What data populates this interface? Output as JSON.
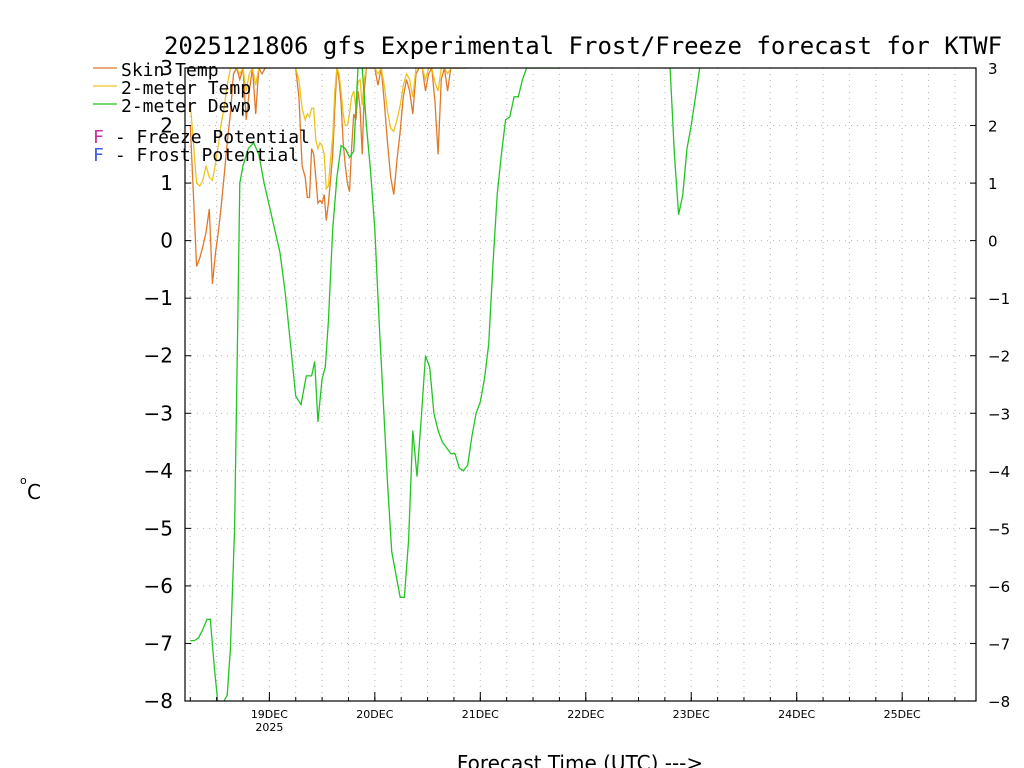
{
  "chart_data": {
    "type": "line",
    "title": "2025121806 gfs Experimental Frost/Freeze forecast for KTWF",
    "xlabel": "Forecast Time (UTC) --->",
    "ylabel_unit": "o",
    "ylabel_letter": "C",
    "ylim": [
      -8,
      3
    ],
    "xlim": [
      -0.8,
      6.7
    ],
    "y_ticks": [
      -8,
      -7,
      -6,
      -5,
      -4,
      -3,
      -2,
      -1,
      0,
      1,
      2,
      3
    ],
    "y_tick_labels": [
      "−8",
      "−7",
      "−6",
      "−5",
      "−4",
      "−3",
      "−2",
      "−1",
      "0",
      "1",
      "2",
      "3"
    ],
    "x_ticks": [
      {
        "day": 0,
        "label": "19DEC",
        "sublabel": "2025"
      },
      {
        "day": 1,
        "label": "20DEC",
        "sublabel": ""
      },
      {
        "day": 2,
        "label": "21DEC",
        "sublabel": ""
      },
      {
        "day": 3,
        "label": "22DEC",
        "sublabel": ""
      },
      {
        "day": 4,
        "label": "23DEC",
        "sublabel": ""
      },
      {
        "day": 5,
        "label": "24DEC",
        "sublabel": ""
      },
      {
        "day": 6,
        "label": "25DEC",
        "sublabel": ""
      }
    ],
    "grid": true,
    "legend": [
      {
        "symbol": "line",
        "color": "#e0782a",
        "text": "Skin Temp"
      },
      {
        "symbol": "line",
        "color": "#ecc420",
        "text": "2-meter Temp"
      },
      {
        "symbol": "line",
        "color": "#23c423",
        "text": "2-meter Dewp"
      },
      {
        "symbol": "F",
        "color": "#c8329a",
        "text": " - Freeze Potential"
      },
      {
        "symbol": "F",
        "color": "#3c5ae6",
        "text": " - Frost Potential"
      }
    ],
    "series": [
      {
        "name": "Skin Temp",
        "color": "#e0782a",
        "x": [
          -0.75,
          -0.72,
          -0.69,
          -0.66,
          -0.63,
          -0.6,
          -0.57,
          -0.54,
          -0.51,
          -0.48,
          -0.46,
          -0.43,
          -0.4,
          -0.37,
          -0.34,
          -0.31,
          -0.28,
          -0.25,
          -0.22,
          -0.19,
          -0.16,
          -0.13,
          -0.1,
          -0.07,
          -0.04,
          0.25,
          0.28,
          0.31,
          0.34,
          0.36,
          0.38,
          0.4,
          0.42,
          0.44,
          0.46,
          0.48,
          0.5,
          0.52,
          0.54,
          0.56,
          0.58,
          0.6,
          0.62,
          0.64,
          0.66,
          0.68,
          0.7,
          0.72,
          0.74,
          0.76,
          0.78,
          0.8,
          0.82,
          0.84,
          0.86,
          0.88,
          0.9,
          0.92,
          1.0,
          1.03,
          1.06,
          1.09,
          1.12,
          1.15,
          1.18,
          1.21,
          1.24,
          1.27,
          1.3,
          1.33,
          1.36,
          1.39,
          1.42,
          1.45,
          1.48,
          1.51,
          1.54,
          1.57,
          1.6,
          1.63,
          1.66,
          1.69,
          1.72,
          1.75,
          1.78,
          1.81,
          1.84,
          1.87
        ],
        "y": [
          2.0,
          0.8,
          -0.45,
          -0.3,
          -0.1,
          0.15,
          0.55,
          -0.75,
          -0.2,
          0.2,
          0.55,
          1.1,
          1.7,
          2.2,
          2.9,
          3.0,
          2.8,
          3.0,
          2.1,
          2.6,
          3.0,
          2.2,
          3.0,
          2.9,
          3.0,
          3.0,
          2.5,
          1.3,
          1.1,
          0.75,
          0.75,
          1.6,
          1.5,
          1.1,
          0.65,
          0.7,
          0.65,
          0.8,
          0.35,
          0.65,
          1.05,
          1.5,
          2.3,
          3.0,
          2.8,
          2.4,
          1.7,
          1.3,
          1.0,
          0.85,
          1.6,
          2.2,
          2.1,
          2.6,
          2.3,
          1.5,
          2.6,
          3.0,
          3.0,
          2.7,
          3.0,
          2.4,
          1.7,
          1.1,
          0.8,
          1.4,
          1.9,
          2.5,
          2.8,
          2.6,
          2.2,
          2.9,
          3.0,
          3.0,
          2.6,
          2.9,
          3.0,
          2.4,
          1.5,
          2.8,
          3.0,
          2.6,
          3.0,
          3.0,
          3.0,
          3.0,
          3.0,
          3.0
        ]
      },
      {
        "name": "2-meter Temp",
        "color": "#ecc420",
        "x": [
          -0.75,
          -0.72,
          -0.69,
          -0.66,
          -0.63,
          -0.6,
          -0.57,
          -0.54,
          -0.51,
          -0.48,
          -0.46,
          -0.43,
          -0.4,
          -0.37,
          -0.34,
          -0.31,
          -0.28,
          -0.25,
          -0.22,
          -0.19,
          -0.16,
          -0.13,
          -0.1,
          -0.07,
          -0.04,
          0.25,
          0.28,
          0.31,
          0.34,
          0.36,
          0.38,
          0.4,
          0.42,
          0.44,
          0.46,
          0.48,
          0.5,
          0.52,
          0.54,
          0.56,
          0.58,
          0.6,
          0.62,
          0.64,
          0.66,
          0.68,
          0.7,
          0.72,
          0.74,
          0.76,
          0.78,
          0.8,
          0.82,
          0.84,
          0.86,
          0.88,
          0.9,
          0.92,
          1.0,
          1.03,
          1.06,
          1.09,
          1.12,
          1.15,
          1.18,
          1.21,
          1.24,
          1.27,
          1.3,
          1.33,
          1.36,
          1.39,
          1.42,
          1.45,
          1.48,
          1.51,
          1.54,
          1.57,
          1.6,
          1.63,
          1.66,
          1.69,
          1.72,
          1.75,
          1.78,
          1.81,
          1.84,
          1.87
        ],
        "y": [
          2.4,
          1.7,
          1.0,
          0.95,
          1.05,
          1.3,
          1.1,
          1.05,
          1.35,
          1.7,
          2.0,
          2.3,
          2.7,
          3.0,
          3.0,
          3.0,
          2.9,
          3.0,
          2.6,
          2.9,
          3.0,
          2.7,
          3.0,
          3.0,
          3.0,
          3.0,
          2.8,
          2.3,
          2.1,
          2.2,
          2.15,
          2.3,
          2.3,
          1.75,
          1.6,
          1.7,
          1.65,
          1.5,
          0.9,
          0.95,
          1.4,
          1.8,
          2.6,
          3.0,
          2.9,
          2.6,
          2.2,
          2.0,
          2.0,
          2.2,
          2.5,
          2.6,
          2.3,
          2.75,
          2.8,
          2.35,
          2.8,
          3.0,
          3.0,
          2.9,
          3.0,
          2.7,
          2.25,
          1.95,
          1.9,
          2.1,
          2.35,
          2.7,
          2.9,
          2.8,
          2.5,
          3.0,
          3.0,
          3.0,
          2.8,
          3.0,
          3.0,
          2.75,
          2.6,
          3.0,
          3.0,
          2.9,
          3.0,
          3.0,
          3.0,
          3.0,
          3.0,
          3.0
        ]
      },
      {
        "name": "2-meter Dewp",
        "color": "#23c423",
        "x": [
          -0.75,
          -0.71,
          -0.67,
          -0.63,
          -0.59,
          -0.56,
          -0.52,
          -0.49,
          -0.46,
          -0.43,
          -0.4,
          -0.37,
          -0.33,
          -0.3,
          -0.28,
          -0.25,
          -0.2,
          -0.15,
          -0.1,
          -0.05,
          0.0,
          0.05,
          0.1,
          0.15,
          0.2,
          0.25,
          0.3,
          0.35,
          0.4,
          0.43,
          0.46,
          0.5,
          0.53,
          0.56,
          0.6,
          0.64,
          0.68,
          0.72,
          0.76,
          0.8,
          0.84,
          0.88,
          0.92,
          0.96,
          1.0,
          1.04,
          1.08,
          1.12,
          1.16,
          1.2,
          1.24,
          1.28,
          1.32,
          1.36,
          1.4,
          1.44,
          1.48,
          1.52,
          1.56,
          1.6,
          1.64,
          1.68,
          1.72,
          1.76,
          1.8,
          1.84,
          1.88,
          1.92,
          1.96,
          2.0,
          2.04,
          2.08,
          2.12,
          2.16,
          2.2,
          2.24,
          2.28,
          2.32,
          2.36,
          2.4,
          2.44,
          2.48,
          2.52,
          2.56,
          2.6,
          2.64,
          2.68,
          2.72,
          2.76,
          3.8,
          3.84,
          3.88,
          3.92,
          3.96,
          4.0,
          4.04,
          4.08
        ],
        "y": [
          -6.95,
          -6.95,
          -6.9,
          -6.75,
          -6.58,
          -6.58,
          -7.45,
          -8.0,
          -8.1,
          -8.0,
          -7.9,
          -7.1,
          -5.0,
          -1.5,
          1.0,
          1.3,
          1.6,
          1.7,
          1.5,
          1.0,
          0.6,
          0.2,
          -0.2,
          -0.9,
          -1.8,
          -2.7,
          -2.85,
          -2.35,
          -2.35,
          -2.1,
          -3.15,
          -2.4,
          -2.2,
          -1.4,
          0.2,
          1.1,
          1.65,
          1.6,
          1.45,
          1.55,
          3.0,
          3.0,
          2.0,
          1.2,
          0.2,
          -1.4,
          -2.8,
          -4.2,
          -5.4,
          -5.8,
          -6.2,
          -6.2,
          -5.2,
          -3.3,
          -4.1,
          -3.1,
          -2.0,
          -2.2,
          -3.0,
          -3.3,
          -3.5,
          -3.6,
          -3.7,
          -3.7,
          -3.95,
          -4.0,
          -3.9,
          -3.4,
          -3.0,
          -2.8,
          -2.4,
          -1.8,
          -0.4,
          0.8,
          1.5,
          2.1,
          2.15,
          2.5,
          2.5,
          2.8,
          3.0,
          3.0,
          3.0,
          3.0,
          3.0,
          3.0,
          3.0,
          3.0,
          3.0,
          3.0,
          1.5,
          0.45,
          0.8,
          1.6,
          2.0,
          2.5,
          3.0
        ]
      }
    ]
  }
}
